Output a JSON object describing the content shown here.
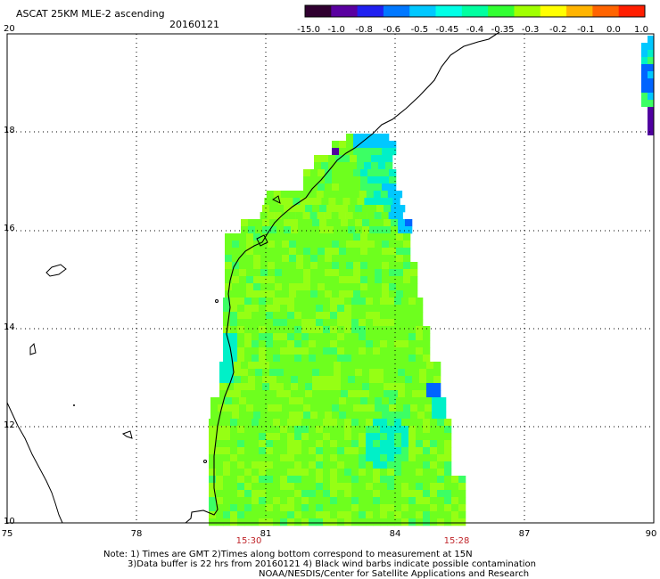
{
  "header": {
    "title": "ASCAT 25KM MLE-2 ascending",
    "date": "20160121"
  },
  "colorbar": {
    "labels": [
      "-15.0",
      "-1.0",
      "-0.8",
      "-0.6",
      "-0.5",
      "-0.45",
      "-0.4",
      "-0.35",
      "-0.3",
      "-0.2",
      "-0.1",
      "0.0",
      "1.0"
    ],
    "colors": [
      "#300030",
      "#5a00a0",
      "#2020f0",
      "#0078ff",
      "#00c8ff",
      "#00ffe6",
      "#00ffa0",
      "#32ff32",
      "#a0ff00",
      "#ffff00",
      "#ffb400",
      "#ff6400",
      "#ff1e00"
    ]
  },
  "axes": {
    "y_ticks": [
      "20",
      "18",
      "16",
      "14",
      "12",
      "10"
    ],
    "x_ticks": [
      "75",
      "78",
      "81",
      "84",
      "87",
      "90"
    ],
    "time_labels": [
      "15:30",
      "15:28"
    ]
  },
  "notes": {
    "line1": "Note: 1) Times are GMT  2)Times along bottom correspond to measurement at 15N",
    "line2": "3)Data buffer is 22 hrs from 20160121  4) Black wind barbs indicate possible contamination",
    "line3": "NOAA/NESDIS/Center for Satellite Applications and Research"
  },
  "map_colors": {
    "base": "#6eff1e",
    "light": "#96ff14",
    "cool": "#3cff64",
    "teal": "#00f0c8",
    "cyan": "#00c8ff",
    "blue": "#0064ff",
    "purple": "#5000a0",
    "coast": "#000000"
  }
}
